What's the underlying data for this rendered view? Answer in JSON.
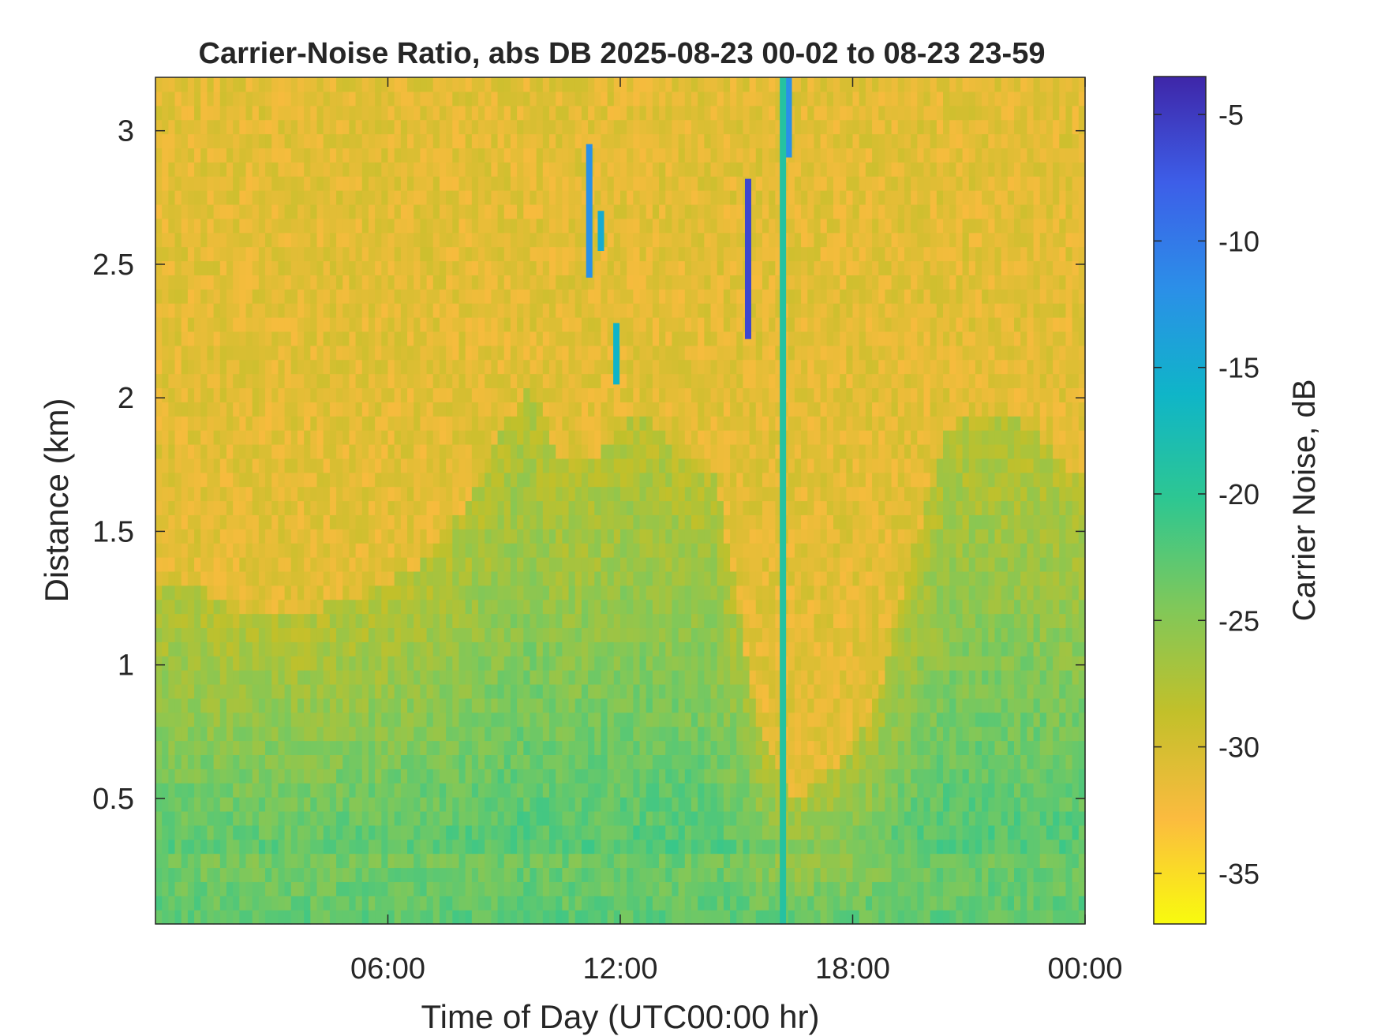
{
  "chart_data": {
    "type": "heatmap",
    "title": "Carrier-Noise Ratio, abs DB 2025-08-23 00-02 to 08-23 23-59",
    "xlabel": "Time of Day (UTC00:00 hr)",
    "ylabel": "Distance (km)",
    "colorbar_label": "Carrier Noise, dB",
    "xlim_hours": [
      0.0,
      24.0
    ],
    "ylim_km": [
      0.03,
      3.2
    ],
    "clim_db": [
      -37,
      -3.5
    ],
    "x_ticks": [
      {
        "value": 6,
        "label": "06:00"
      },
      {
        "value": 12,
        "label": "12:00"
      },
      {
        "value": 18,
        "label": "18:00"
      },
      {
        "value": 24,
        "label": "00:00"
      }
    ],
    "y_ticks": [
      {
        "value": 0.5,
        "label": "0.5"
      },
      {
        "value": 1,
        "label": "1"
      },
      {
        "value": 1.5,
        "label": "1.5"
      },
      {
        "value": 2,
        "label": "2"
      },
      {
        "value": 2.5,
        "label": "2.5"
      },
      {
        "value": 3,
        "label": "3"
      }
    ],
    "colorbar_ticks": [
      {
        "value": -5,
        "label": "-5"
      },
      {
        "value": -10,
        "label": "-10"
      },
      {
        "value": -15,
        "label": "-15"
      },
      {
        "value": -20,
        "label": "-20"
      },
      {
        "value": -25,
        "label": "-25"
      },
      {
        "value": -30,
        "label": "-30"
      },
      {
        "value": -35,
        "label": "-35"
      }
    ],
    "colormap": [
      "#f9fb0e",
      "#fbbb3f",
      "#c2c02a",
      "#7fc85a",
      "#2ec791",
      "#0fb5c8",
      "#2b8fe8",
      "#3d5ee8",
      "#3e26a8"
    ],
    "background_db": -31,
    "boundary_layer_top_km": {
      "x": [
        0,
        1,
        2,
        3,
        4,
        5,
        6,
        7,
        8,
        9,
        9.7,
        10.5,
        11.5,
        12.5,
        13.5,
        14.5,
        15.5,
        16.5,
        17.5,
        18.5,
        19.5,
        20.5,
        21.5,
        22.5,
        23.5,
        24
      ],
      "y": [
        1.3,
        1.3,
        1.2,
        1.2,
        1.2,
        1.25,
        1.3,
        1.4,
        1.6,
        1.9,
        2.05,
        1.75,
        1.8,
        1.95,
        1.8,
        1.7,
        0.8,
        0.5,
        0.6,
        0.8,
        1.4,
        1.9,
        1.95,
        1.9,
        1.75,
        1.7
      ]
    },
    "features": [
      {
        "x_hours": 11.2,
        "y_range_km": [
          2.45,
          2.95
        ],
        "value_db": -12
      },
      {
        "x_hours": 11.9,
        "y_range_km": [
          2.05,
          2.28
        ],
        "value_db": -16
      },
      {
        "x_hours": 11.5,
        "y_range_km": [
          2.55,
          2.7
        ],
        "value_db": -15
      },
      {
        "x_hours": 15.3,
        "y_range_km": [
          2.22,
          2.82
        ],
        "value_db": -6
      },
      {
        "x_hours": 16.35,
        "y_range_km": [
          2.9,
          3.2
        ],
        "value_db": -12
      },
      {
        "x_hours": 16.2,
        "y_range_km": [
          0.03,
          3.2
        ],
        "value_db": -19
      }
    ]
  }
}
